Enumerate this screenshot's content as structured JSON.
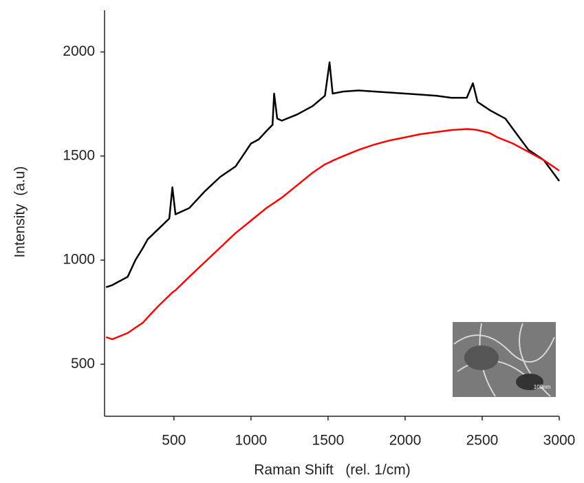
{
  "chart_data": {
    "type": "line",
    "x_label": "Raman Shift   (rel. 1/cm)",
    "y_label": "Intensity  (a.u)",
    "annotation": "100nm",
    "x": [
      60,
      100,
      200,
      250,
      300,
      330,
      400,
      470,
      490,
      510,
      600,
      700,
      800,
      900,
      1000,
      1050,
      1100,
      1140,
      1150,
      1170,
      1200,
      1300,
      1400,
      1480,
      1510,
      1530,
      1600,
      1700,
      1800,
      1900,
      2000,
      2100,
      2200,
      2300,
      2400,
      2440,
      2470,
      2550,
      2600,
      2650,
      2700,
      2750,
      2800,
      2900,
      3000
    ],
    "series": [
      {
        "color": "#000000",
        "values": [
          870,
          880,
          920,
          1000,
          1060,
          1100,
          1150,
          1200,
          1350,
          1220,
          1250,
          1330,
          1400,
          1450,
          1560,
          1580,
          1620,
          1650,
          1800,
          1680,
          1670,
          1700,
          1740,
          1790,
          1950,
          1800,
          1810,
          1815,
          1810,
          1805,
          1800,
          1795,
          1790,
          1780,
          1780,
          1850,
          1760,
          1720,
          1700,
          1680,
          1630,
          1580,
          1530,
          1480,
          1380
        ]
      },
      {
        "color": "#ff0000",
        "values": [
          630,
          620,
          650,
          675,
          700,
          725,
          780,
          830,
          845,
          855,
          920,
          990,
          1060,
          1130,
          1190,
          1220,
          1250,
          1270,
          1275,
          1285,
          1300,
          1360,
          1420,
          1460,
          1470,
          1478,
          1500,
          1530,
          1555,
          1575,
          1590,
          1605,
          1615,
          1625,
          1630,
          1628,
          1625,
          1610,
          1590,
          1575,
          1560,
          1540,
          1520,
          1480,
          1430
        ]
      }
    ],
    "xlim": [
      50,
      3000
    ],
    "xticks": [
      500,
      1000,
      1500,
      2000,
      2500,
      3000
    ],
    "ylim": [
      250,
      2200
    ],
    "yticks": [
      500,
      1000,
      1500,
      2000
    ],
    "grid": false
  }
}
